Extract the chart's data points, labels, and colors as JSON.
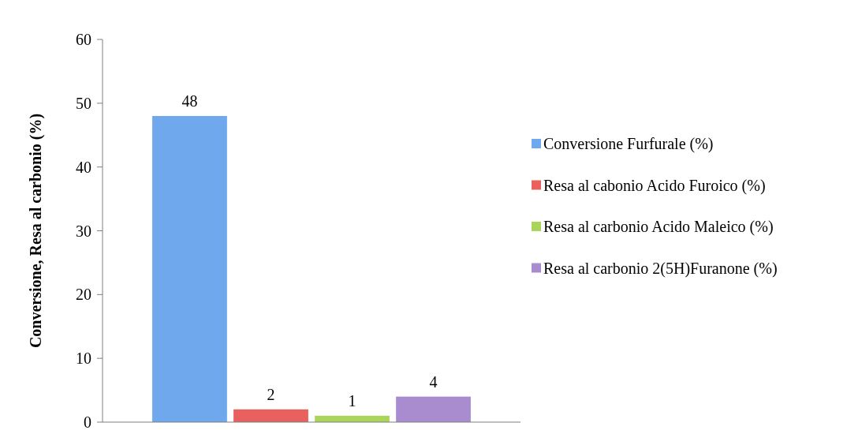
{
  "chart_data": {
    "type": "bar",
    "ylabel": "Conversione, Resa al carbonio (%)",
    "categories": [
      null
    ],
    "series": [
      {
        "name": "Conversione Furfurale (%)",
        "color": "#6fa8ec",
        "values": [
          48
        ]
      },
      {
        "name": "Resa al cabonio Acido Furoico (%)",
        "color": "#e8615e",
        "values": [
          2
        ]
      },
      {
        "name": "Resa al carbonio Acido Maleico (%)",
        "color": "#a9d65a",
        "values": [
          1
        ]
      },
      {
        "name": "Resa al carbonio 2(5H)Furanone (%)",
        "color": "#a98bd0",
        "values": [
          4
        ]
      }
    ],
    "ylim": [
      0,
      60
    ],
    "yticks": [
      0,
      10,
      20,
      30,
      40,
      50,
      60
    ],
    "grid": false,
    "legend": "right",
    "data_labels": true
  }
}
